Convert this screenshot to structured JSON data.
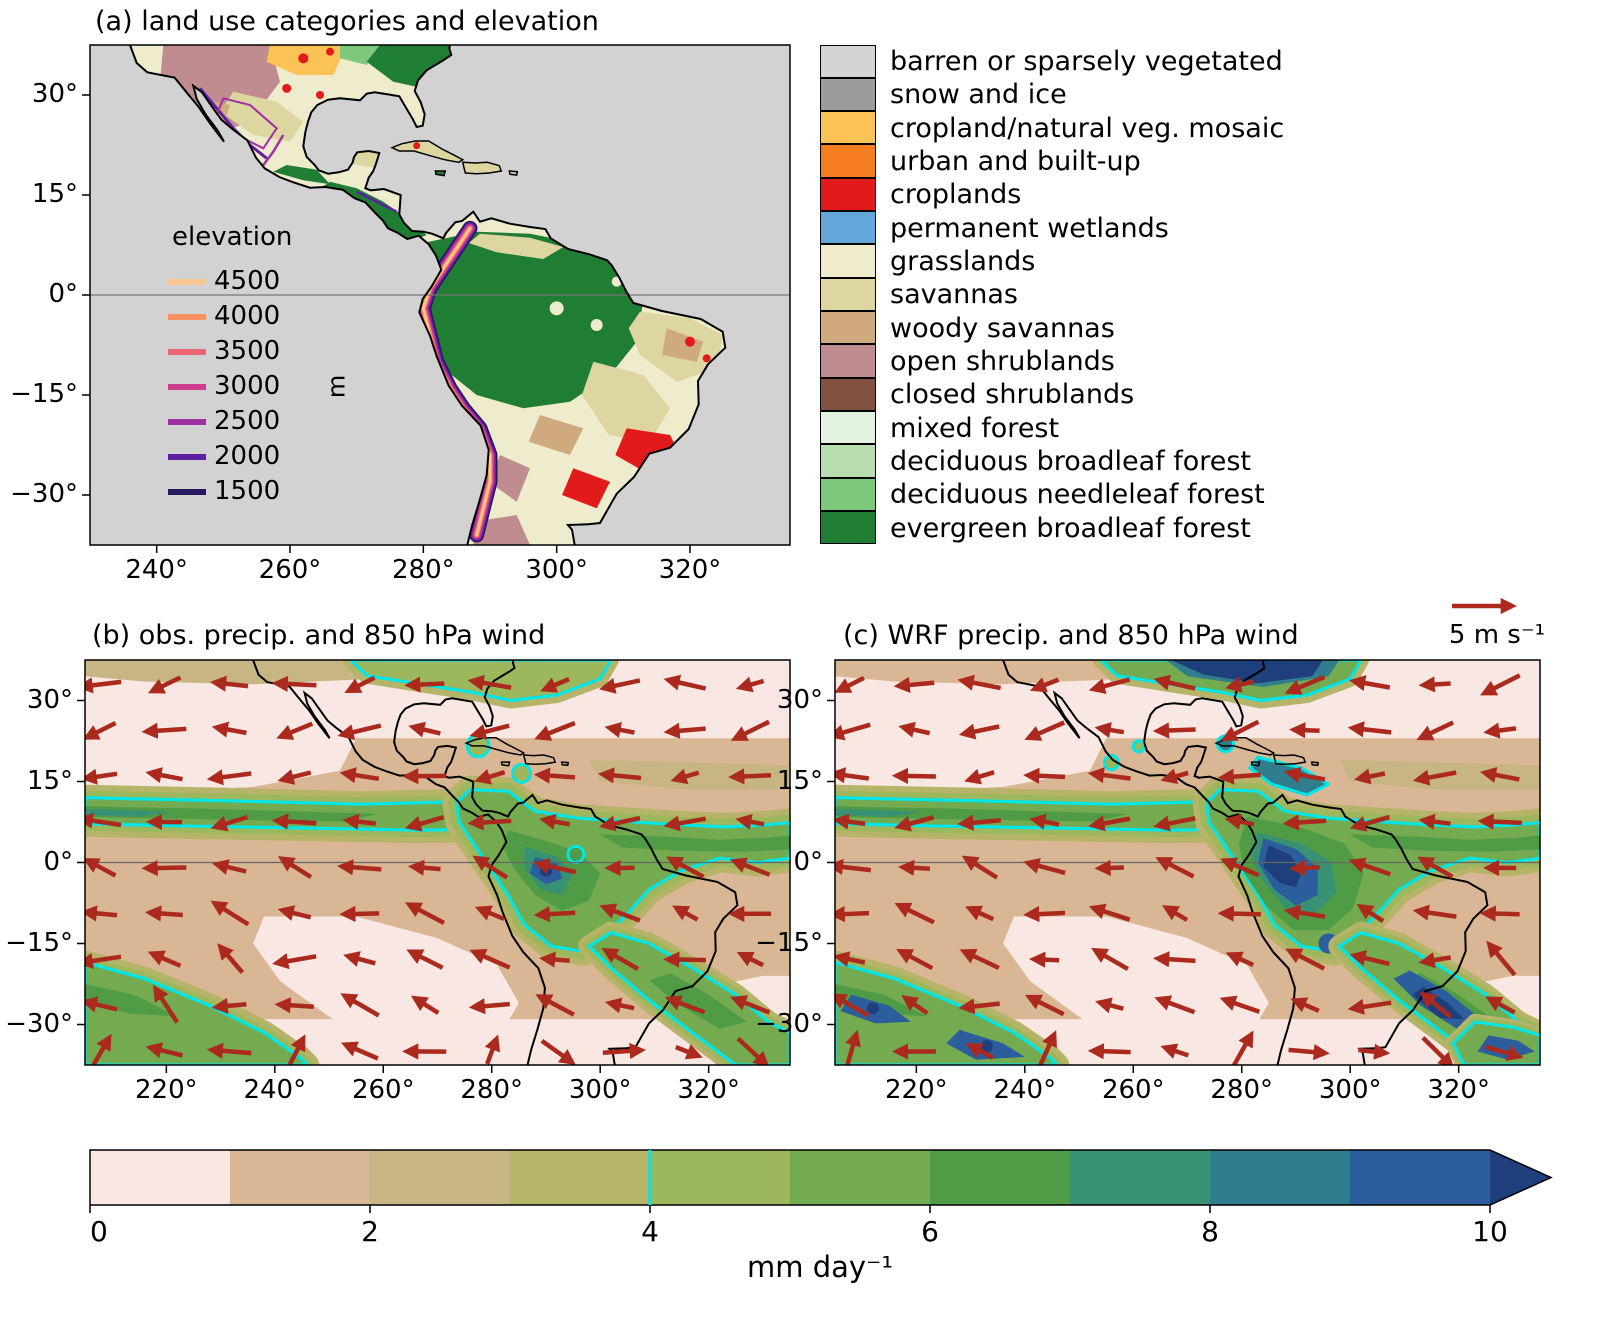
{
  "figure": {
    "panel_a": {
      "title": "(a) land use categories and elevation",
      "x_ticks": [
        "240°",
        "260°",
        "280°",
        "300°",
        "320°"
      ],
      "y_ticks": [
        "30°",
        "15°",
        "0°",
        "−15°",
        "−30°"
      ],
      "elevation_legend": {
        "title": "elevation",
        "unit": "m",
        "levels": [
          {
            "value": "4500",
            "color": "#fdc790"
          },
          {
            "value": "4000",
            "color": "#fa9160"
          },
          {
            "value": "3500",
            "color": "#ee6673"
          },
          {
            "value": "3000",
            "color": "#cf3e8e"
          },
          {
            "value": "2500",
            "color": "#a02fa3"
          },
          {
            "value": "2000",
            "color": "#5e1fa3"
          },
          {
            "value": "1500",
            "color": "#27175f"
          }
        ]
      },
      "landuse_legend": [
        {
          "label": "barren or sparsely vegetated",
          "color": "#d4d4d4"
        },
        {
          "label": "snow and ice",
          "color": "#9b9b9b"
        },
        {
          "label": "cropland/natural veg. mosaic",
          "color": "#fbc355"
        },
        {
          "label": "urban and built-up",
          "color": "#f57e20"
        },
        {
          "label": "croplands",
          "color": "#e31a1c"
        },
        {
          "label": "permanent wetlands",
          "color": "#62a6dc"
        },
        {
          "label": "grasslands",
          "color": "#eeeccd"
        },
        {
          "label": "savannas",
          "color": "#ddd6a0"
        },
        {
          "label": "woody savannas",
          "color": "#d0aa7f"
        },
        {
          "label": "open shrublands",
          "color": "#bf8d90"
        },
        {
          "label": "closed shrublands",
          "color": "#82513f"
        },
        {
          "label": "mixed forest",
          "color": "#e4f3df"
        },
        {
          "label": "deciduous broadleaf forest",
          "color": "#b7ddb0"
        },
        {
          "label": "deciduous needleleaf forest",
          "color": "#7ec87c"
        },
        {
          "label": "evergreen broadleaf forest",
          "color": "#1f7d34"
        }
      ]
    },
    "panel_b": {
      "title": "(b) obs. precip. and 850 hPa wind",
      "x_ticks": [
        "220°",
        "240°",
        "260°",
        "280°",
        "300°",
        "320°"
      ],
      "y_ticks": [
        "30°",
        "15°",
        "0°",
        "−15°",
        "−30°"
      ]
    },
    "panel_c": {
      "title": "(c) WRF precip. and 850 hPa wind",
      "x_ticks": [
        "220°",
        "240°",
        "260°",
        "280°",
        "300°",
        "320°"
      ],
      "y_ticks": [
        "30°",
        "15°",
        "0°",
        "−15°",
        "−30°"
      ]
    },
    "wind_reference": {
      "label": "5 m s⁻¹"
    },
    "colorbar": {
      "label": "mm day⁻¹",
      "ticks": [
        "0",
        "2",
        "4",
        "6",
        "8",
        "10"
      ],
      "segments": [
        "#f8e7e2",
        "#d9b795",
        "#c7b684",
        "#b6b469",
        "#9db75d",
        "#74ab50",
        "#4f9b46",
        "#389173",
        "#2f7d8d",
        "#2c5d9c"
      ],
      "over_color": "#1e3f7c",
      "contour_marker_value": "4"
    }
  },
  "chart_data": {
    "type": "map",
    "panels": [
      {
        "id": "a",
        "title": "(a) land use categories and elevation",
        "lon_range_deg_east": [
          230,
          335
        ],
        "lat_range_deg": [
          -37.5,
          37.5
        ],
        "x_ticks_deg_east": [
          240,
          260,
          280,
          300,
          320
        ],
        "y_ticks_deg": [
          30,
          15,
          0,
          -15,
          -30
        ],
        "land_use_categories": [
          "barren or sparsely vegetated",
          "snow and ice",
          "cropland/natural veg. mosaic",
          "urban and built-up",
          "croplands",
          "permanent wetlands",
          "grasslands",
          "savannas",
          "woody savannas",
          "open shrublands",
          "closed shrublands",
          "mixed forest",
          "deciduous broadleaf forest",
          "deciduous needleleaf forest",
          "evergreen broadleaf forest"
        ],
        "elevation_contours_m": [
          4500,
          4000,
          3500,
          3000,
          2500,
          2000,
          1500
        ],
        "elevation_unit": "m"
      },
      {
        "id": "b",
        "title": "(b) obs. precip. and 850 hPa wind",
        "lon_range_deg_east": [
          205,
          335
        ],
        "lat_range_deg": [
          -37.5,
          37.5
        ],
        "x_ticks_deg_east": [
          220,
          240,
          260,
          280,
          300,
          320
        ],
        "y_ticks_deg": [
          30,
          15,
          0,
          -15,
          -30
        ],
        "fields": [
          "precipitation shading (mm day⁻¹, 0–10 scale)",
          "850 hPa wind vectors (dark red arrows)",
          "cyan contour at 4 mm day⁻¹"
        ]
      },
      {
        "id": "c",
        "title": "(c) WRF precip. and 850 hPa wind",
        "lon_range_deg_east": [
          205,
          335
        ],
        "lat_range_deg": [
          -37.5,
          37.5
        ],
        "x_ticks_deg_east": [
          220,
          240,
          260,
          280,
          300,
          320
        ],
        "y_ticks_deg": [
          30,
          15,
          0,
          -15,
          -30
        ],
        "fields": [
          "precipitation shading (mm day⁻¹, 0–10 scale)",
          "850 hPa wind vectors (dark red arrows)",
          "cyan contour at 4 mm day⁻¹"
        ]
      }
    ],
    "colorbar": {
      "label": "mm day⁻¹",
      "tick_values": [
        0,
        2,
        4,
        6,
        8,
        10
      ],
      "range": [
        0,
        10
      ],
      "extend": "max",
      "cyan_marker_at": 4
    },
    "wind_reference_vector": "5 m s⁻¹"
  }
}
